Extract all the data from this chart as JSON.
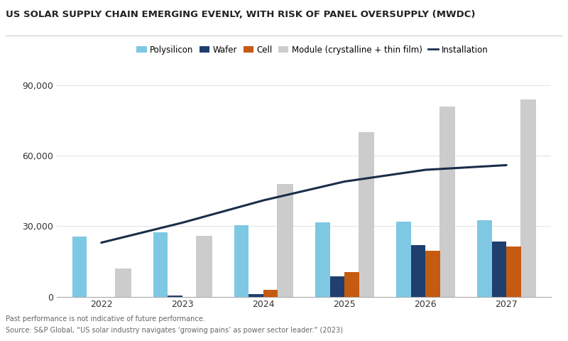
{
  "title": "US SOLAR SUPPLY CHAIN EMERGING EVENLY, WITH RISK OF PANEL OVERSUPPLY (MWDC)",
  "years": [
    2022,
    2023,
    2024,
    2025,
    2026,
    2027
  ],
  "polysilicon": [
    25500,
    27500,
    30500,
    31500,
    32000,
    32500
  ],
  "wafer": [
    0,
    500,
    1200,
    8500,
    22000,
    23500
  ],
  "cell": [
    0,
    0,
    2800,
    10500,
    19500,
    21500
  ],
  "module": [
    12000,
    26000,
    48000,
    70000,
    81000,
    84000
  ],
  "installation": [
    23000,
    31500,
    41000,
    49000,
    54000,
    56000
  ],
  "colors": {
    "polysilicon": "#7EC8E3",
    "wafer": "#1F3F6E",
    "cell": "#C55A11",
    "module": "#CCCCCC",
    "installation": "#1A2E4A"
  },
  "ylim": [
    0,
    90000
  ],
  "yticks": [
    0,
    30000,
    60000,
    90000
  ],
  "ytick_labels": [
    "0",
    "30,000",
    "60,000",
    "90,000"
  ],
  "footnote1": "Past performance is not indicative of future performance.",
  "footnote2": "Source: S&P Global, “US solar industry navigates ‘growing pains’ as power sector leader.” (2023)",
  "bar_width": 0.18,
  "background_color": "#FFFFFF",
  "title_fontsize": 9.5,
  "legend_fontsize": 8.5,
  "tick_fontsize": 9
}
